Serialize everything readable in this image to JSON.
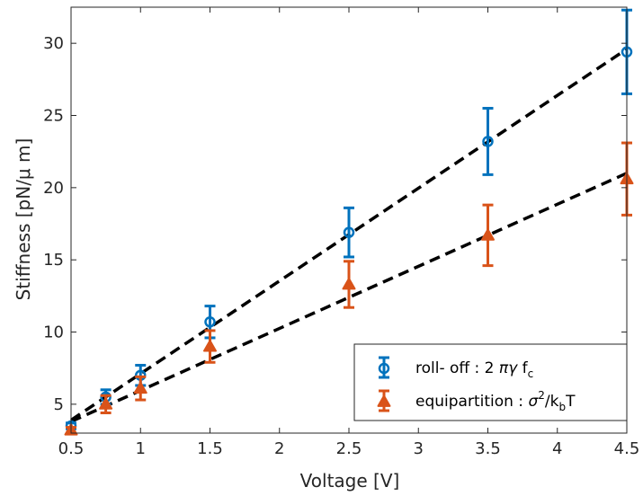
{
  "chart_data": {
    "type": "scatter",
    "title": "",
    "xlabel": "Voltage [V]",
    "ylabel": "Stiffness [pN/μ m]",
    "xlim": [
      0.5,
      4.5
    ],
    "ylim": [
      3,
      32.5
    ],
    "xticks": [
      "0.5",
      "1",
      "1.5",
      "2",
      "2.5",
      "3",
      "3.5",
      "4",
      "4.5"
    ],
    "yticks": [
      "5",
      "10",
      "15",
      "20",
      "25",
      "30"
    ],
    "grid": false,
    "legend_position": "bottom-right",
    "series": [
      {
        "name_prefix": "roll- off : 2 ",
        "name_greek": "πγ",
        "name_suffix": " f",
        "name_subscript": "c",
        "color": "#0072BD",
        "marker": "circle",
        "x": [
          0.5,
          0.75,
          1.0,
          1.5,
          2.5,
          3.5,
          4.5
        ],
        "y": [
          3.5,
          5.5,
          7.0,
          10.7,
          16.9,
          23.2,
          29.4
        ],
        "err": [
          0.2,
          0.5,
          0.7,
          1.1,
          1.7,
          2.3,
          2.9
        ],
        "fit": [
          [
            0.5,
            3.9
          ],
          [
            4.5,
            29.6
          ]
        ]
      },
      {
        "name_prefix": "equipartition : ",
        "name_greek": "σ",
        "name_sup": "2",
        "name_slash": "/k",
        "name_subscript": "b",
        "name_suffix": "T",
        "color": "#D95319",
        "marker": "triangle",
        "x": [
          0.5,
          0.75,
          1.0,
          1.5,
          2.5,
          3.5,
          4.5
        ],
        "y": [
          3.2,
          5.0,
          6.1,
          9.0,
          13.3,
          16.7,
          20.6
        ],
        "err": [
          0.2,
          0.6,
          0.8,
          1.1,
          1.6,
          2.1,
          2.5
        ],
        "fit": [
          [
            0.5,
            3.8
          ],
          [
            4.5,
            21.0
          ]
        ]
      }
    ]
  }
}
